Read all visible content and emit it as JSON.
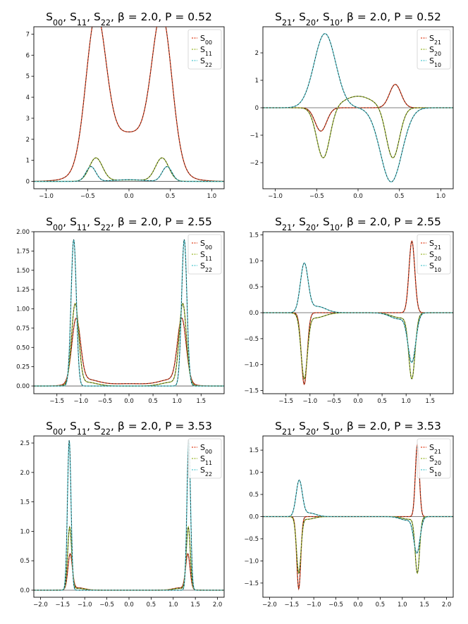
{
  "colors": {
    "c_a": "#e0401e",
    "c_b": "#9cb82d",
    "c_c": "#4fc7cf",
    "fit": "#1a1a1a",
    "zero": "#555555"
  },
  "chart_data": [
    {
      "type": "line",
      "title": "S_{00}, S_{11}, S_{22}, β = 2.0, P = 0.52",
      "xlim": [
        -1.15,
        1.15
      ],
      "ylim": [
        -0.35,
        7.35
      ],
      "xticks": [
        "-1.0",
        "-0.5",
        "0.0",
        "0.5",
        "1.0"
      ],
      "yticks": [
        "0",
        "1",
        "2",
        "3",
        "4",
        "5",
        "6",
        "7"
      ],
      "legend": {
        "position": "top-right",
        "labels": [
          "S_{00}",
          "S_{11}",
          "S_{22}"
        ]
      },
      "series": [
        {
          "name": "S_{00}",
          "color_key": "c_a",
          "components": [
            {
              "a": 6.9,
              "mu": -0.4,
              "s": 0.12
            },
            {
              "a": 6.9,
              "mu": 0.4,
              "s": 0.12
            },
            {
              "a": 2.3,
              "mu": 0,
              "s": 0.33
            }
          ]
        },
        {
          "name": "S_{11}",
          "color_key": "c_b",
          "components": [
            {
              "a": 1.1,
              "mu": -0.4,
              "s": 0.08
            },
            {
              "a": 1.1,
              "mu": 0.4,
              "s": 0.08
            },
            {
              "a": 0.07,
              "mu": 0,
              "s": 0.25
            }
          ]
        },
        {
          "name": "S_{22}",
          "color_key": "c_c",
          "components": [
            {
              "a": 0.7,
              "mu": -0.46,
              "s": 0.06
            },
            {
              "a": 0.7,
              "mu": 0.46,
              "s": 0.06
            },
            {
              "a": 0.08,
              "mu": 0,
              "s": 0.18
            }
          ]
        }
      ]
    },
    {
      "type": "line",
      "title": "S_{21}, S_{20}, S_{10}, β = 2.0, P = 0.52",
      "xlim": [
        -1.15,
        1.15
      ],
      "ylim": [
        -2.95,
        2.95
      ],
      "xticks": [
        "-1.0",
        "-0.5",
        "0.0",
        "0.5",
        "1.0"
      ],
      "yticks": [
        "-2",
        "-1",
        "0",
        "1",
        "2"
      ],
      "legend": {
        "position": "top-right",
        "labels": [
          "S_{21}",
          "S_{20}",
          "S_{10}"
        ]
      },
      "series": [
        {
          "name": "S_{21}",
          "color_key": "c_a",
          "components": [
            {
              "a": -0.85,
              "mu": -0.45,
              "s": 0.07
            },
            {
              "a": 0.85,
              "mu": 0.45,
              "s": 0.07
            }
          ]
        },
        {
          "name": "S_{20}",
          "color_key": "c_b",
          "components": [
            {
              "a": -1.85,
              "mu": -0.42,
              "s": 0.08
            },
            {
              "a": -1.85,
              "mu": 0.42,
              "s": 0.08
            },
            {
              "a": 0.42,
              "mu": 0,
              "s": 0.18
            }
          ]
        },
        {
          "name": "S_{10}",
          "color_key": "c_c",
          "components": [
            {
              "a": 2.7,
              "mu": -0.4,
              "s": 0.13
            },
            {
              "a": -2.7,
              "mu": 0.4,
              "s": 0.13
            }
          ]
        }
      ]
    },
    {
      "type": "line",
      "title": "S_{00}, S_{11}, S_{22}, β = 2.0, P = 2.55",
      "xlim": [
        -1.98,
        1.98
      ],
      "ylim": [
        -0.1,
        2.0
      ],
      "xticks": [
        "-1.5",
        "-1.0",
        "-0.5",
        "0.0",
        "0.5",
        "1.0",
        "1.5"
      ],
      "yticks": [
        "0.00",
        "0.25",
        "0.50",
        "0.75",
        "1.00",
        "1.25",
        "1.50",
        "1.75",
        "2.00"
      ],
      "legend": {
        "position": "top-right",
        "labels": [
          "S_{00}",
          "S_{11}",
          "S_{22}"
        ]
      },
      "series": [
        {
          "name": "S_{00}",
          "color_key": "c_a",
          "components": [
            {
              "a": 0.82,
              "mu": -1.1,
              "s": 0.09
            },
            {
              "a": 0.82,
              "mu": 1.1,
              "s": 0.09
            },
            {
              "a": 0.08,
              "mu": -0.9,
              "s": 0.25
            },
            {
              "a": 0.08,
              "mu": 0.9,
              "s": 0.25
            },
            {
              "a": 0.03,
              "mu": 0,
              "s": 0.5
            }
          ]
        },
        {
          "name": "S_{11}",
          "color_key": "c_b",
          "components": [
            {
              "a": 1.04,
              "mu": -1.12,
              "s": 0.075
            },
            {
              "a": 1.04,
              "mu": 1.12,
              "s": 0.075
            },
            {
              "a": 0.05,
              "mu": -0.9,
              "s": 0.22
            },
            {
              "a": 0.05,
              "mu": 0.9,
              "s": 0.22
            }
          ]
        },
        {
          "name": "S_{22}",
          "color_key": "c_c",
          "components": [
            {
              "a": 1.9,
              "mu": -1.15,
              "s": 0.055
            },
            {
              "a": 1.9,
              "mu": 1.15,
              "s": 0.055
            }
          ]
        }
      ]
    },
    {
      "type": "line",
      "title": "S_{21}, S_{20}, S_{10}, β = 2.0, P = 2.55",
      "xlim": [
        -1.98,
        1.98
      ],
      "ylim": [
        -1.56,
        1.56
      ],
      "xticks": [
        "-1.5",
        "-1.0",
        "-0.5",
        "0.0",
        "0.5",
        "1.0",
        "1.5"
      ],
      "yticks": [
        "-1.5",
        "-1.0",
        "-0.5",
        "0.0",
        "0.5",
        "1.0",
        "1.5"
      ],
      "legend": {
        "position": "top-right",
        "labels": [
          "S_{21}",
          "S_{20}",
          "S_{10}"
        ]
      },
      "series": [
        {
          "name": "S_{21}",
          "color_key": "c_a",
          "components": [
            {
              "a": -1.38,
              "mu": -1.12,
              "s": 0.06
            },
            {
              "a": 1.38,
              "mu": 1.12,
              "s": 0.06
            }
          ]
        },
        {
          "name": "S_{20}",
          "color_key": "c_b",
          "components": [
            {
              "a": -1.22,
              "mu": -1.12,
              "s": 0.065
            },
            {
              "a": -1.22,
              "mu": 1.12,
              "s": 0.065
            },
            {
              "a": -0.1,
              "mu": -0.9,
              "s": 0.2
            },
            {
              "a": -0.1,
              "mu": 0.9,
              "s": 0.2
            }
          ]
        },
        {
          "name": "S_{10}",
          "color_key": "c_c",
          "components": [
            {
              "a": 0.92,
              "mu": -1.12,
              "s": 0.08
            },
            {
              "a": -0.92,
              "mu": 1.12,
              "s": 0.08
            },
            {
              "a": 0.12,
              "mu": -0.85,
              "s": 0.18
            },
            {
              "a": -0.12,
              "mu": 0.85,
              "s": 0.18
            }
          ]
        }
      ]
    },
    {
      "type": "line",
      "title": "S_{00}, S_{11}, S_{22}, β = 2.0, P = 3.53",
      "xlim": [
        -2.15,
        2.15
      ],
      "ylim": [
        -0.12,
        2.62
      ],
      "xticks": [
        "-2.0",
        "-1.5",
        "-1.0",
        "-0.5",
        "0.0",
        "0.5",
        "1.0",
        "1.5",
        "2.0"
      ],
      "yticks": [
        "0.0",
        "0.5",
        "1.0",
        "1.5",
        "2.0",
        "2.5"
      ],
      "legend": {
        "position": "top-right",
        "labels": [
          "S_{00}",
          "S_{11}",
          "S_{22}"
        ]
      },
      "series": [
        {
          "name": "S_{00}",
          "color_key": "c_a",
          "components": [
            {
              "a": 0.6,
              "mu": -1.33,
              "s": 0.05
            },
            {
              "a": 0.6,
              "mu": 1.33,
              "s": 0.05
            },
            {
              "a": 0.04,
              "mu": -1.15,
              "s": 0.15
            },
            {
              "a": 0.04,
              "mu": 1.15,
              "s": 0.15
            }
          ]
        },
        {
          "name": "S_{11}",
          "color_key": "c_b",
          "components": [
            {
              "a": 1.06,
              "mu": -1.34,
              "s": 0.045
            },
            {
              "a": 1.06,
              "mu": 1.34,
              "s": 0.045
            },
            {
              "a": 0.03,
              "mu": -1.15,
              "s": 0.15
            },
            {
              "a": 0.03,
              "mu": 1.15,
              "s": 0.15
            }
          ]
        },
        {
          "name": "S_{22}",
          "color_key": "c_c",
          "components": [
            {
              "a": 2.55,
              "mu": -1.35,
              "s": 0.04
            },
            {
              "a": 2.55,
              "mu": 1.35,
              "s": 0.04
            }
          ]
        }
      ]
    },
    {
      "type": "line",
      "title": "S_{21}, S_{20}, S_{10}, β = 2.0, P = 3.53",
      "xlim": [
        -2.15,
        2.15
      ],
      "ylim": [
        -1.82,
        1.82
      ],
      "xticks": [
        "-2.0",
        "-1.5",
        "-1.0",
        "-0.5",
        "0.0",
        "0.5",
        "1.0",
        "1.5",
        "2.0"
      ],
      "yticks": [
        "-1.5",
        "-1.0",
        "-0.5",
        "0.0",
        "0.5",
        "1.0",
        "1.5"
      ],
      "legend": {
        "position": "top-right",
        "labels": [
          "S_{21}",
          "S_{20}",
          "S_{10}"
        ]
      },
      "series": [
        {
          "name": "S_{21}",
          "color_key": "c_a",
          "components": [
            {
              "a": -1.63,
              "mu": -1.34,
              "s": 0.045
            },
            {
              "a": 1.63,
              "mu": 1.34,
              "s": 0.045
            }
          ]
        },
        {
          "name": "S_{20}",
          "color_key": "c_b",
          "components": [
            {
              "a": -1.25,
              "mu": -1.34,
              "s": 0.05
            },
            {
              "a": -1.25,
              "mu": 1.34,
              "s": 0.05
            },
            {
              "a": -0.06,
              "mu": -1.15,
              "s": 0.15
            },
            {
              "a": -0.06,
              "mu": 1.15,
              "s": 0.15
            }
          ]
        },
        {
          "name": "S_{10}",
          "color_key": "c_c",
          "components": [
            {
              "a": 0.8,
              "mu": -1.33,
              "s": 0.07
            },
            {
              "a": -0.8,
              "mu": 1.33,
              "s": 0.07
            },
            {
              "a": 0.08,
              "mu": -1.1,
              "s": 0.15
            },
            {
              "a": -0.08,
              "mu": 1.1,
              "s": 0.15
            }
          ]
        }
      ]
    }
  ]
}
